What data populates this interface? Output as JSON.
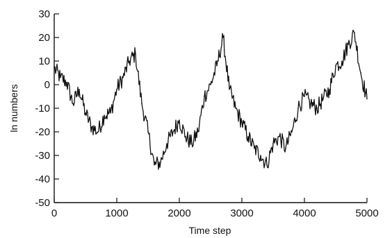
{
  "chart_data": {
    "type": "line",
    "title": "",
    "xlabel": "Time step",
    "ylabel": "ln numbers",
    "xlim": [
      0,
      5000
    ],
    "ylim": [
      -50,
      30
    ],
    "x_ticks": [
      0,
      1000,
      2000,
      3000,
      4000,
      5000
    ],
    "x_tick_labels": [
      "0",
      "1000",
      "2000",
      "3000",
      "4000",
      "5000"
    ],
    "y_ticks": [
      30,
      20,
      10,
      0,
      -10,
      -20,
      -30,
      -40,
      -50
    ],
    "y_tick_labels": [
      "30",
      "20",
      "10",
      "0",
      "-10",
      "-20",
      "-30",
      "-40",
      "-50"
    ],
    "grid": false,
    "legend": "none",
    "series": [
      {
        "x": [
          0,
          100,
          200,
          300,
          400,
          500,
          600,
          700,
          800,
          900,
          1000,
          1100,
          1200,
          1300,
          1400,
          1500,
          1600,
          1700,
          1800,
          1900,
          2000,
          2100,
          2200,
          2300,
          2400,
          2500,
          2600,
          2700,
          2800,
          2900,
          3000,
          3100,
          3200,
          3300,
          3400,
          3500,
          3600,
          3700,
          3800,
          3900,
          4000,
          4100,
          4200,
          4300,
          4400,
          4500,
          4600,
          4700,
          4800,
          4900,
          5000
        ],
        "values": [
          7,
          3,
          1,
          -8,
          -2,
          -12,
          -18,
          -20,
          -13,
          -12,
          -2,
          3,
          10,
          13,
          -8,
          -20,
          -34,
          -33,
          -25,
          -20,
          -15,
          -22,
          -25,
          -20,
          -5,
          0,
          8,
          20,
          -2,
          -10,
          -16,
          -22,
          -27,
          -30,
          -34,
          -25,
          -22,
          -27,
          -20,
          -10,
          -5,
          -8,
          -10,
          -6,
          -2,
          8,
          10,
          17,
          22,
          5,
          -6
        ]
      }
    ]
  }
}
